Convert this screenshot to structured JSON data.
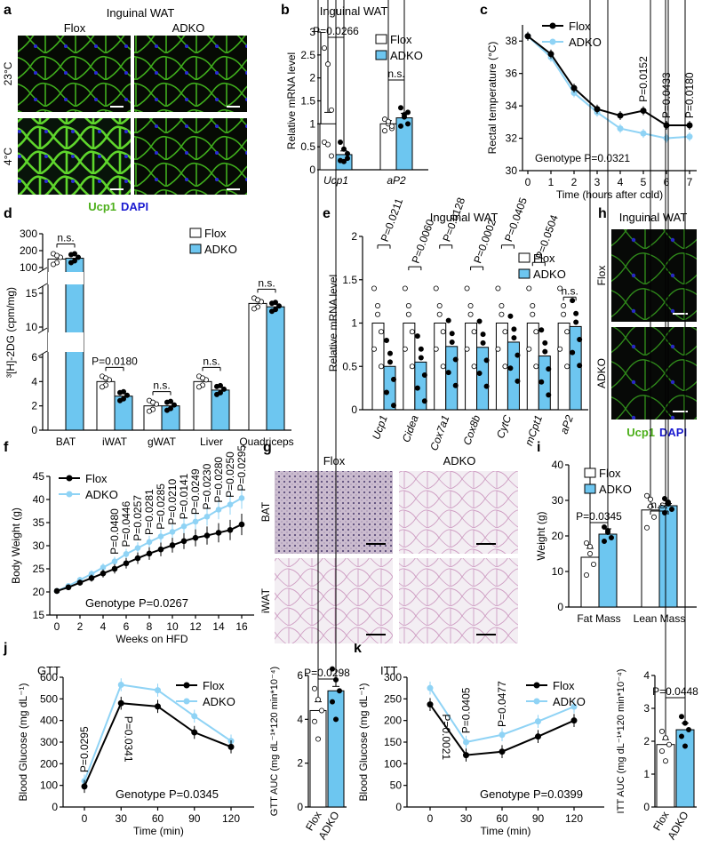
{
  "colors": {
    "flox": "#000000",
    "adko": "#8fd3f5",
    "bar_adko": "#6dc6f0",
    "green": "#4caf1a",
    "blue": "#1b1bd0"
  },
  "panels": {
    "a": {
      "letter": "a",
      "title": "Inguinal WAT",
      "col1": "Flox",
      "col2": "ADKO",
      "row1": "23°C",
      "row2": "4°C",
      "legend_ucp1": "Ucp1",
      "legend_dapi": "DAPI"
    },
    "b": {
      "letter": "b"
    },
    "c": {
      "letter": "c"
    },
    "d": {
      "letter": "d"
    },
    "e": {
      "letter": "e"
    },
    "f": {
      "letter": "f"
    },
    "g": {
      "letter": "g",
      "col1": "Flox",
      "col2": "ADKO",
      "row1": "BAT",
      "row2": "iWAT"
    },
    "h": {
      "letter": "h",
      "title": "Inguinal WAT",
      "row1": "Flox",
      "row2": "ADKO",
      "legend_ucp1": "Ucp1",
      "legend_dapi": "DAPI"
    },
    "i": {
      "letter": "i"
    },
    "j": {
      "letter": "j"
    },
    "k": {
      "letter": "k"
    }
  },
  "chart_data": [
    {
      "id": "b",
      "type": "bar",
      "title": "Inguinal WAT",
      "ylabel": "Relative mRNA level",
      "ylim": [
        0,
        3.0
      ],
      "yticks": [
        0,
        0.5,
        1.0,
        1.5,
        2.0,
        2.5,
        3.0
      ],
      "categories": [
        "Ucp1",
        "aP2"
      ],
      "series": [
        {
          "name": "Flox",
          "values": [
            1.0,
            1.0
          ],
          "errors": [
            0.25,
            0.07
          ]
        },
        {
          "name": "ADKO",
          "values": [
            0.33,
            1.13
          ],
          "errors": [
            0.08,
            0.1
          ]
        }
      ],
      "annotations": [
        "P=0.0266",
        "n.s."
      ],
      "legend": "top-right"
    },
    {
      "id": "c",
      "type": "line",
      "ylabel": "Rectal temperature (°C)",
      "xlabel": "Time (hours after cold)",
      "x": [
        0,
        1,
        2,
        3,
        4,
        5,
        6,
        7
      ],
      "ylim": [
        30,
        39
      ],
      "yticks": [
        30,
        32,
        34,
        36,
        38
      ],
      "series": [
        {
          "name": "Flox",
          "values": [
            38.3,
            37.2,
            35.1,
            33.8,
            33.4,
            33.7,
            32.8,
            32.8
          ]
        },
        {
          "name": "ADKO",
          "values": [
            38.3,
            37.0,
            34.8,
            33.6,
            32.6,
            32.3,
            32.0,
            32.1
          ]
        }
      ],
      "annotations": [
        "P=0.0152",
        "P=0.0433",
        "P=0.0180",
        "Genotype P=0.0321"
      ],
      "legend": "top-right"
    },
    {
      "id": "d",
      "type": "bar",
      "ylabel": "³[H]-2DG (cpm/mg)",
      "categories": [
        "BAT",
        "iWAT",
        "gWAT",
        "Liver",
        "Quadriceps"
      ],
      "yticks_top": [
        100,
        200,
        300
      ],
      "yticks_mid": [
        10,
        15
      ],
      "yticks_bottom": [
        0,
        2,
        4,
        6
      ],
      "series": [
        {
          "name": "Flox",
          "values": [
            150,
            4.0,
            2.0,
            4.0,
            13.5
          ]
        },
        {
          "name": "ADKO",
          "values": [
            155,
            2.8,
            2.0,
            3.3,
            13.0
          ]
        }
      ],
      "annotations": [
        "n.s.",
        "P=0.0180",
        "n.s.",
        "n.s.",
        "n.s."
      ],
      "legend": "top-right"
    },
    {
      "id": "e",
      "type": "bar",
      "title": "Inguinal WAT",
      "ylabel": "Relative mRNA level",
      "ylim": [
        0,
        2.0
      ],
      "yticks": [
        0,
        0.5,
        1.0,
        1.5,
        2.0
      ],
      "categories": [
        "Ucp1",
        "Cidea",
        "Cox7a1",
        "Cox8b",
        "CytC",
        "mCpt1",
        "aP2"
      ],
      "series": [
        {
          "name": "Flox",
          "values": [
            1.0,
            1.0,
            1.0,
            1.0,
            1.0,
            1.0,
            1.0
          ]
        },
        {
          "name": "ADKO",
          "values": [
            0.5,
            0.55,
            0.73,
            0.72,
            0.78,
            0.62,
            0.96
          ]
        }
      ],
      "annotations": [
        "P=0.0211",
        "P=0.0060",
        "P=0.0128",
        "P=0.0002",
        "P=0.0405",
        "P=0.0504",
        "n.s."
      ],
      "legend": "top-right"
    },
    {
      "id": "f",
      "type": "line",
      "ylabel": "Body Weight (g)",
      "xlabel": "Weeks on HFD",
      "x": [
        0,
        1,
        2,
        3,
        4,
        5,
        6,
        7,
        8,
        9,
        10,
        11,
        12,
        13,
        14,
        15,
        16
      ],
      "ylim": [
        15,
        45
      ],
      "yticks": [
        15,
        20,
        25,
        30,
        35,
        40,
        45
      ],
      "xticks": [
        0,
        2,
        4,
        6,
        8,
        10,
        12,
        14,
        16
      ],
      "series": [
        {
          "name": "Flox",
          "values": [
            20.2,
            21.0,
            22.0,
            23.0,
            24.0,
            25.0,
            26.2,
            27.3,
            28.3,
            29.2,
            30.1,
            31.0,
            31.7,
            32.2,
            32.8,
            33.4,
            34.6
          ]
        },
        {
          "name": "ADKO",
          "values": [
            20.2,
            21.3,
            22.6,
            23.9,
            25.3,
            26.6,
            28.2,
            29.5,
            30.8,
            32.0,
            33.0,
            34.2,
            35.2,
            36.3,
            37.8,
            38.9,
            40.3
          ]
        }
      ],
      "annotations": [
        "P=0.0480",
        "P=0.0446",
        "P=0.0257",
        "P=0.0281",
        "P=0.0285",
        "P=0.0210",
        "P=0.0141",
        "P=0.0249",
        "P=0.0230",
        "P=0.0280",
        "P=0.0250",
        "P=0.0295",
        "Genotype P=0.0267"
      ],
      "legend": "top-left"
    },
    {
      "id": "i",
      "type": "bar",
      "ylabel": "Weight (g)",
      "ylim": [
        0,
        40
      ],
      "yticks": [
        0,
        10,
        20,
        30,
        40
      ],
      "categories": [
        "Fat Mass",
        "Lean Mass"
      ],
      "series": [
        {
          "name": "Flox",
          "values": [
            14,
            27.3
          ]
        },
        {
          "name": "ADKO",
          "values": [
            20.5,
            28.5
          ]
        }
      ],
      "annotations": [
        "P=0.0345",
        "n.s."
      ],
      "legend": "top-left"
    },
    {
      "id": "j",
      "type": "line",
      "title": "GTT",
      "ylabel": "Blood Glucose (mg dL⁻¹)",
      "xlabel": "Time (min)",
      "x": [
        0,
        30,
        60,
        90,
        120
      ],
      "ylim": [
        0,
        600
      ],
      "yticks": [
        0,
        100,
        200,
        300,
        400,
        500,
        600
      ],
      "series": [
        {
          "name": "Flox",
          "values": [
            95,
            480,
            465,
            345,
            278
          ]
        },
        {
          "name": "ADKO",
          "values": [
            120,
            565,
            540,
            420,
            305
          ]
        }
      ],
      "annotations": [
        "P=0.0295",
        "P=0.0341",
        "Genotype P=0.0345"
      ],
      "legend": "top-right"
    },
    {
      "id": "j2",
      "type": "bar",
      "ylabel": "GTT AUC (mg dL⁻¹*120 min*10⁻⁴)",
      "ylim": [
        0,
        6
      ],
      "yticks": [
        0,
        2,
        4,
        6
      ],
      "categories": [
        "Flox",
        "ADKO"
      ],
      "values": [
        4.4,
        5.3
      ],
      "annotations": [
        "P=0.0298"
      ]
    },
    {
      "id": "k",
      "type": "line",
      "title": "ITT",
      "ylabel": "Blood Glucose (mg dL⁻¹)",
      "xlabel": "Time (min)",
      "x": [
        0,
        30,
        60,
        90,
        120
      ],
      "ylim": [
        0,
        300
      ],
      "yticks": [
        0,
        50,
        100,
        150,
        200,
        250,
        300
      ],
      "series": [
        {
          "name": "Flox",
          "values": [
            237,
            120,
            128,
            163,
            200
          ]
        },
        {
          "name": "ADKO",
          "values": [
            275,
            150,
            167,
            198,
            232
          ]
        }
      ],
      "annotations": [
        "P=0.0021",
        "P=0.0405",
        "P=0.0477",
        "Genotype P=0.0399"
      ],
      "legend": "top-right"
    },
    {
      "id": "k2",
      "type": "bar",
      "ylabel": "ITT AUC (mg dL⁻¹*120 min*10⁻⁴)",
      "ylim": [
        0,
        4
      ],
      "yticks": [
        0,
        1,
        2,
        3,
        4
      ],
      "categories": [
        "Flox",
        "ADKO"
      ],
      "values": [
        1.9,
        2.35
      ],
      "annotations": [
        "P=0.0448"
      ]
    }
  ]
}
